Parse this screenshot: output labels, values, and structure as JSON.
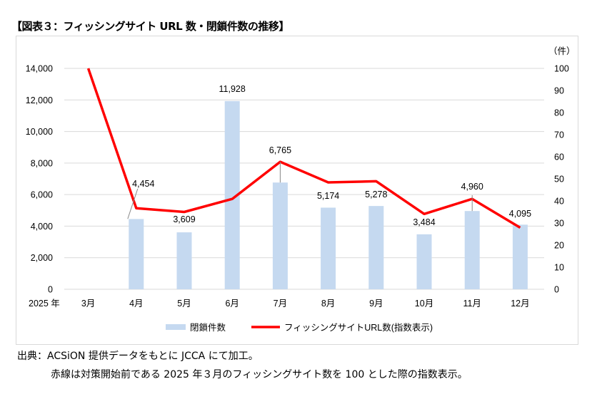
{
  "title": "【図表３：フィッシングサイト URL 数・閉鎖件数の推移】",
  "notes": [
    "出典：ACSiON 提供データをもとに JCCA にて加工。",
    "赤線は対策開始前である 2025 年３月のフィッシングサイト数を 100 とした際の指数表示。"
  ],
  "chart_data": {
    "type": "bar+line",
    "year_label": "2025 年",
    "right_unit_label": "（件）",
    "categories": [
      "3月",
      "4月",
      "5月",
      "6月",
      "7月",
      "8月",
      "9月",
      "10月",
      "11月",
      "12月"
    ],
    "series": [
      {
        "name": "閉鎖件数",
        "type": "bar",
        "axis": "left",
        "color": "#c5d9f0",
        "values": [
          null,
          4454,
          3609,
          11928,
          6765,
          5174,
          5278,
          3484,
          4960,
          4095
        ],
        "labels": [
          "",
          "4,454",
          "3,609",
          "11,928",
          "6,765",
          "5,174",
          "5,278",
          "3,484",
          "4,960",
          "4,095"
        ]
      },
      {
        "name": "フィッシングサイトURL数(指数表示)",
        "type": "line",
        "axis": "right",
        "color": "#ff0000",
        "values": [
          100,
          36.7,
          35.0,
          40.9,
          57.7,
          48.4,
          48.9,
          34.1,
          40.9,
          27.9
        ]
      }
    ],
    "left_axis": {
      "min": 0,
      "max": 14000,
      "ticks": [
        "0",
        "2,000",
        "4,000",
        "6,000",
        "8,000",
        "10,000",
        "12,000",
        "14,000"
      ]
    },
    "right_axis": {
      "min": 0,
      "max": 100,
      "ticks": [
        "0",
        "10",
        "20",
        "30",
        "40",
        "50",
        "60",
        "70",
        "80",
        "90",
        "100"
      ]
    },
    "grid": true,
    "legend_position": "bottom"
  }
}
